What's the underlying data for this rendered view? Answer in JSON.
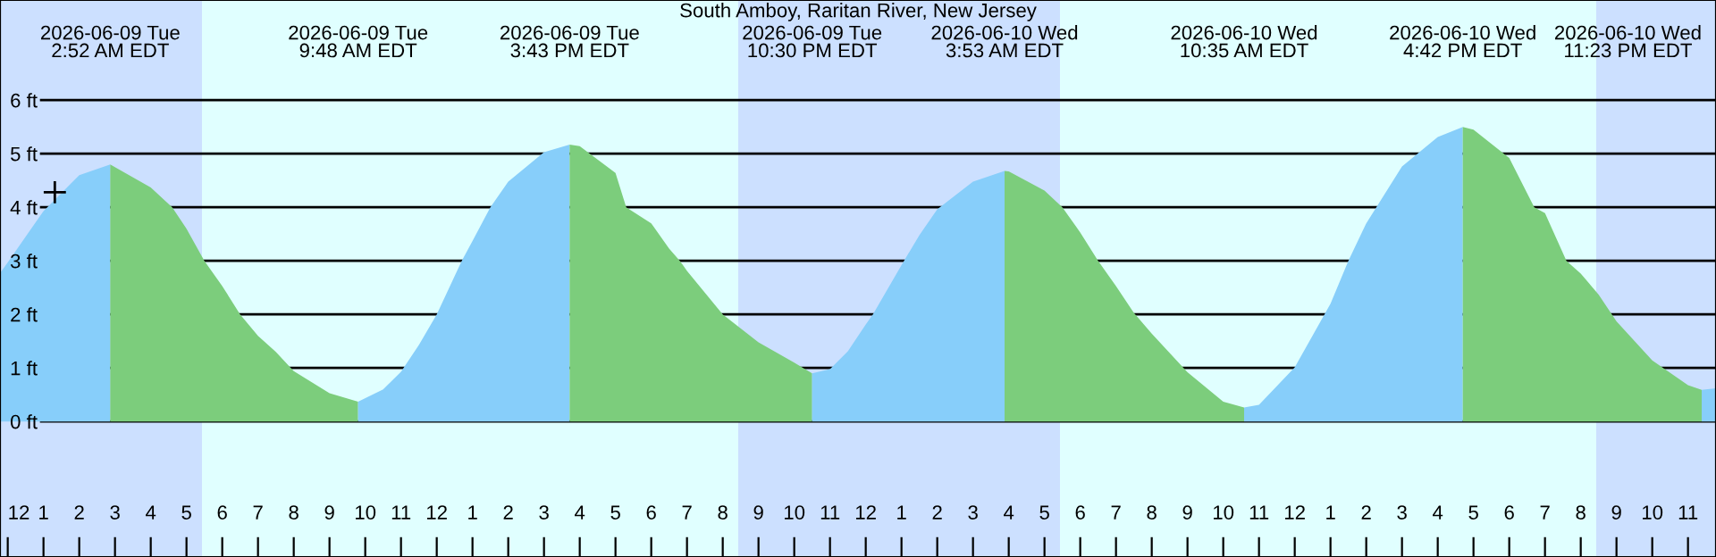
{
  "chart_data": {
    "type": "area",
    "title": "South Amboy, Raritan River, New Jersey",
    "xlim": [
      "2026-06-08T23:47",
      "2026-06-10T23:47"
    ],
    "ylim": [
      -2.53,
      7.87
    ],
    "xticks": [
      {
        "value": "2026-06-09T00:00",
        "label": "12"
      },
      {
        "value": "2026-06-09T01:00",
        "label": "1"
      },
      {
        "value": "2026-06-09T02:00",
        "label": "2"
      },
      {
        "value": "2026-06-09T03:00",
        "label": "3"
      },
      {
        "value": "2026-06-09T04:00",
        "label": "4"
      },
      {
        "value": "2026-06-09T05:00",
        "label": "5"
      },
      {
        "value": "2026-06-09T06:00",
        "label": "6"
      },
      {
        "value": "2026-06-09T07:00",
        "label": "7"
      },
      {
        "value": "2026-06-09T08:00",
        "label": "8"
      },
      {
        "value": "2026-06-09T09:00",
        "label": "9"
      },
      {
        "value": "2026-06-09T10:00",
        "label": "10"
      },
      {
        "value": "2026-06-09T11:00",
        "label": "11"
      },
      {
        "value": "2026-06-09T12:00",
        "label": "12"
      },
      {
        "value": "2026-06-09T13:00",
        "label": "1"
      },
      {
        "value": "2026-06-09T14:00",
        "label": "2"
      },
      {
        "value": "2026-06-09T15:00",
        "label": "3"
      },
      {
        "value": "2026-06-09T16:00",
        "label": "4"
      },
      {
        "value": "2026-06-09T17:00",
        "label": "5"
      },
      {
        "value": "2026-06-09T18:00",
        "label": "6"
      },
      {
        "value": "2026-06-09T19:00",
        "label": "7"
      },
      {
        "value": "2026-06-09T20:00",
        "label": "8"
      },
      {
        "value": "2026-06-09T21:00",
        "label": "9"
      },
      {
        "value": "2026-06-09T22:00",
        "label": "10"
      },
      {
        "value": "2026-06-09T23:00",
        "label": "11"
      },
      {
        "value": "2026-06-10T00:00",
        "label": "12"
      },
      {
        "value": "2026-06-10T01:00",
        "label": "1"
      },
      {
        "value": "2026-06-10T02:00",
        "label": "2"
      },
      {
        "value": "2026-06-10T03:00",
        "label": "3"
      },
      {
        "value": "2026-06-10T04:00",
        "label": "4"
      },
      {
        "value": "2026-06-10T05:00",
        "label": "5"
      },
      {
        "value": "2026-06-10T06:00",
        "label": "6"
      },
      {
        "value": "2026-06-10T07:00",
        "label": "7"
      },
      {
        "value": "2026-06-10T08:00",
        "label": "8"
      },
      {
        "value": "2026-06-10T09:00",
        "label": "9"
      },
      {
        "value": "2026-06-10T10:00",
        "label": "10"
      },
      {
        "value": "2026-06-10T11:00",
        "label": "11"
      },
      {
        "value": "2026-06-10T12:00",
        "label": "12"
      },
      {
        "value": "2026-06-10T13:00",
        "label": "1"
      },
      {
        "value": "2026-06-10T14:00",
        "label": "2"
      },
      {
        "value": "2026-06-10T15:00",
        "label": "3"
      },
      {
        "value": "2026-06-10T16:00",
        "label": "4"
      },
      {
        "value": "2026-06-10T17:00",
        "label": "5"
      },
      {
        "value": "2026-06-10T18:00",
        "label": "6"
      },
      {
        "value": "2026-06-10T19:00",
        "label": "7"
      },
      {
        "value": "2026-06-10T20:00",
        "label": "8"
      },
      {
        "value": "2026-06-10T21:00",
        "label": "9"
      },
      {
        "value": "2026-06-10T22:00",
        "label": "10"
      },
      {
        "value": "2026-06-10T23:00",
        "label": "11"
      }
    ],
    "yticks": [
      {
        "value": 0,
        "label": "0 ft"
      },
      {
        "value": 1,
        "label": "1 ft"
      },
      {
        "value": 2,
        "label": "2 ft"
      },
      {
        "value": 3,
        "label": "3 ft"
      },
      {
        "value": 4,
        "label": "4 ft"
      },
      {
        "value": 5,
        "label": "5 ft"
      },
      {
        "value": 6,
        "label": "6 ft"
      }
    ],
    "grid": "y",
    "bands": [
      {
        "axis": "x",
        "from": "2026-06-08T23:47",
        "to": "2026-06-09T05:26",
        "color": "#cce0ff"
      },
      {
        "axis": "x",
        "from": "2026-06-09T05:26",
        "to": "2026-06-09T20:26",
        "color": "#e0ffff"
      },
      {
        "axis": "x",
        "from": "2026-06-09T20:26",
        "to": "2026-06-10T05:26",
        "color": "#cce0ff"
      },
      {
        "axis": "x",
        "from": "2026-06-10T05:26",
        "to": "2026-06-10T20:26",
        "color": "#e0ffff"
      },
      {
        "axis": "x",
        "from": "2026-06-10T20:26",
        "to": "2026-06-10T23:47",
        "color": "#cce0ff"
      }
    ],
    "series": [
      {
        "color": "#87cefa",
        "x": [
          "2026-06-08T23:47",
          "2026-06-09T00:00",
          "2026-06-09T01:00",
          "2026-06-09T02:00",
          "2026-06-09T02:52"
        ],
        "values": [
          2.77,
          2.97,
          3.93,
          4.6,
          4.8
        ]
      },
      {
        "color": "#7ccd7c",
        "x": [
          "2026-06-09T02:52",
          "2026-06-09T04:00",
          "2026-06-09T04:36",
          "2026-06-09T05:00",
          "2026-06-09T05:30",
          "2026-06-09T06:00",
          "2026-06-09T06:30",
          "2026-06-09T07:00",
          "2026-06-09T07:30",
          "2026-06-09T08:00",
          "2026-06-09T09:00",
          "2026-06-09T09:48"
        ],
        "values": [
          4.8,
          4.37,
          4.0,
          3.6,
          3.0,
          2.53,
          2.0,
          1.6,
          1.3,
          0.94,
          0.53,
          0.37
        ]
      },
      {
        "color": "#87cefa",
        "x": [
          "2026-06-09T09:48",
          "2026-06-09T10:30",
          "2026-06-09T11:00",
          "2026-06-09T11:30",
          "2026-06-09T12:00",
          "2026-06-09T12:42",
          "2026-06-09T13:00",
          "2026-06-09T13:30",
          "2026-06-09T14:00",
          "2026-06-09T15:00",
          "2026-06-09T15:43"
        ],
        "values": [
          0.37,
          0.6,
          0.93,
          1.43,
          2.0,
          3.0,
          3.37,
          4.0,
          4.48,
          5.03,
          5.17
        ]
      },
      {
        "color": "#7ccd7c",
        "x": [
          "2026-06-09T15:43",
          "2026-06-09T16:00",
          "2026-06-09T17:00",
          "2026-06-09T17:18",
          "2026-06-09T18:00",
          "2026-06-09T18:30",
          "2026-06-09T18:48",
          "2026-06-09T19:00",
          "2026-06-09T20:00",
          "2026-06-09T21:00",
          "2026-06-09T22:00",
          "2026-06-09T22:30"
        ],
        "values": [
          5.17,
          5.14,
          4.64,
          4.0,
          3.7,
          3.23,
          3.0,
          2.81,
          2.0,
          1.48,
          1.1,
          0.9
        ]
      },
      {
        "color": "#87cefa",
        "x": [
          "2026-06-09T22:30",
          "2026-06-09T23:00",
          "2026-06-09T23:30",
          "2026-06-10T00:00",
          "2026-06-10T00:12",
          "2026-06-10T01:00",
          "2026-06-10T01:30",
          "2026-06-10T02:00",
          "2026-06-10T03:00",
          "2026-06-10T03:53"
        ],
        "values": [
          0.9,
          0.98,
          1.31,
          1.81,
          2.0,
          2.92,
          3.48,
          3.96,
          4.48,
          4.68
        ]
      },
      {
        "color": "#7ccd7c",
        "x": [
          "2026-06-10T03:53",
          "2026-06-10T04:00",
          "2026-06-10T05:00",
          "2026-06-10T05:30",
          "2026-06-10T06:00",
          "2026-06-10T06:30",
          "2026-06-10T07:00",
          "2026-06-10T07:30",
          "2026-06-10T08:00",
          "2026-06-10T09:00",
          "2026-06-10T10:00",
          "2026-06-10T10:35"
        ],
        "values": [
          4.68,
          4.67,
          4.31,
          4.0,
          3.53,
          3.0,
          2.53,
          2.03,
          1.64,
          0.92,
          0.37,
          0.26
        ]
      },
      {
        "color": "#87cefa",
        "x": [
          "2026-06-10T10:35",
          "2026-06-10T11:00",
          "2026-06-10T12:00",
          "2026-06-10T13:00",
          "2026-06-10T13:30",
          "2026-06-10T14:00",
          "2026-06-10T15:00",
          "2026-06-10T16:00",
          "2026-06-10T16:42"
        ],
        "values": [
          0.26,
          0.31,
          1.01,
          2.2,
          3.0,
          3.7,
          4.76,
          5.31,
          5.5
        ]
      },
      {
        "color": "#7ccd7c",
        "x": [
          "2026-06-10T16:42",
          "2026-06-10T17:00",
          "2026-06-10T18:00",
          "2026-06-10T18:42",
          "2026-06-10T19:00",
          "2026-06-10T19:36",
          "2026-06-10T20:00",
          "2026-06-10T20:30",
          "2026-06-10T21:00",
          "2026-06-10T22:00",
          "2026-06-10T23:00",
          "2026-06-10T23:23"
        ],
        "values": [
          5.5,
          5.45,
          4.92,
          4.0,
          3.89,
          3.0,
          2.76,
          2.37,
          1.87,
          1.14,
          0.68,
          0.59
        ]
      },
      {
        "color": "#87cefa",
        "x": [
          "2026-06-10T23:23",
          "2026-06-10T23:47"
        ],
        "values": [
          0.59,
          0.62
        ]
      },
      {
        "type": "scatter",
        "color": "#000000",
        "marker": "cross",
        "x": [
          "2026-06-09T01:19"
        ],
        "values": [
          4.28
        ]
      }
    ],
    "annotations": [
      "2026-06-09 Tue\n2:52 AM EDT",
      "2026-06-09 Tue\n9:48 AM EDT",
      "2026-06-09 Tue\n3:43 PM EDT",
      "2026-06-09 Tue\n10:30 PM EDT",
      "2026-06-10 Wed\n3:53 AM EDT",
      "2026-06-10 Wed\n10:35 AM EDT",
      "2026-06-10 Wed\n4:42 PM EDT",
      "2026-06-10 Wed\n11:23 PM EDT"
    ]
  }
}
